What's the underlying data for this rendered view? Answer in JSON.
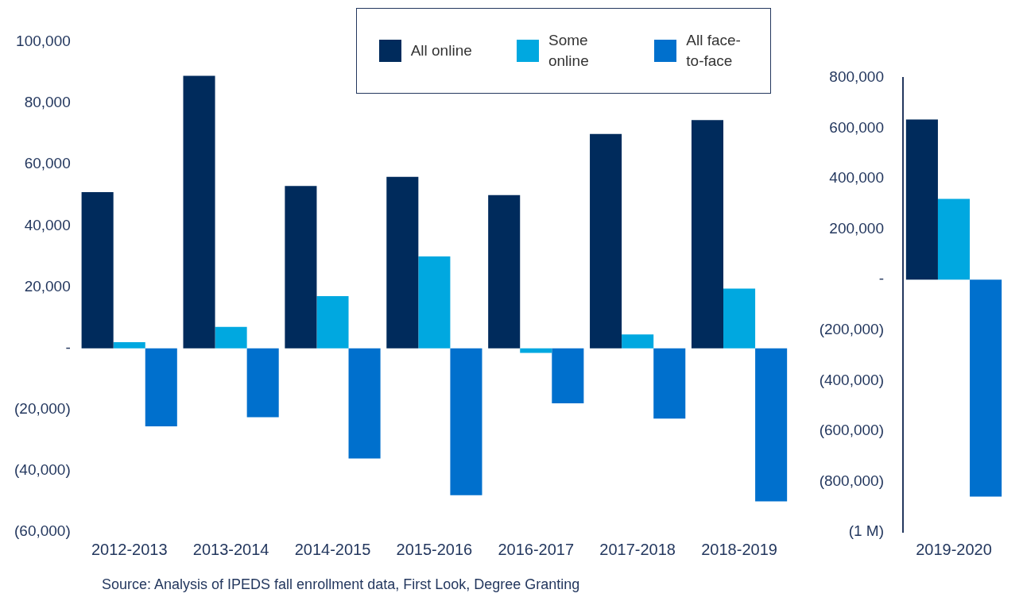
{
  "chart_data": [
    {
      "type": "bar",
      "categories": [
        "2012-2013",
        "2013-2014",
        "2014-2015",
        "2015-2016",
        "2016-2017",
        "2017-2018",
        "2018-2019"
      ],
      "series": [
        {
          "name": "All online",
          "color": "#002b5c",
          "values": [
            51000,
            89000,
            53000,
            56000,
            50000,
            70000,
            74500
          ]
        },
        {
          "name": "Some online",
          "color": "#00a8e0",
          "values": [
            2000,
            7000,
            17000,
            30000,
            -1500,
            4500,
            19500
          ]
        },
        {
          "name": "All face-to-face",
          "color": "#0070cd",
          "values": [
            -25500,
            -22500,
            -36000,
            -48000,
            -18000,
            -23000,
            -50000
          ]
        }
      ],
      "ylim": [
        -60000,
        100000
      ],
      "yticks": [
        {
          "value": -60000,
          "label": "(60,000)"
        },
        {
          "value": -40000,
          "label": "(40,000)"
        },
        {
          "value": -20000,
          "label": "(20,000)"
        },
        {
          "value": 0,
          "label": "-"
        },
        {
          "value": 20000,
          "label": "20,000"
        },
        {
          "value": 40000,
          "label": "40,000"
        },
        {
          "value": 60000,
          "label": "60,000"
        },
        {
          "value": 80000,
          "label": "80,000"
        },
        {
          "value": 100000,
          "label": "100,000"
        }
      ],
      "legend": "top",
      "grid": false,
      "annotations": [
        "Source: Analysis of IPEDS fall enrollment data, First Look, Degree Granting"
      ]
    },
    {
      "type": "bar",
      "categories": [
        "2019-2020"
      ],
      "series": [
        {
          "color": "#002b5c",
          "values": [
            635000
          ]
        },
        {
          "color": "#00a8e0",
          "values": [
            320000
          ]
        },
        {
          "color": "#0070cd",
          "values": [
            -860000
          ]
        }
      ],
      "ylim": [
        -1000000,
        800000
      ],
      "yticks": [
        {
          "value": -1000000,
          "label": "(1 M)"
        },
        {
          "value": -800000,
          "label": "(800,000)"
        },
        {
          "value": -600000,
          "label": "(600,000)"
        },
        {
          "value": -400000,
          "label": "(400,000)"
        },
        {
          "value": -200000,
          "label": "(200,000)"
        },
        {
          "value": 0,
          "label": "-"
        },
        {
          "value": 200000,
          "label": "200,000"
        },
        {
          "value": 400000,
          "label": "400,000"
        },
        {
          "value": 600000,
          "label": "600,000"
        },
        {
          "value": 800000,
          "label": "800,000"
        }
      ],
      "grid": false
    }
  ]
}
